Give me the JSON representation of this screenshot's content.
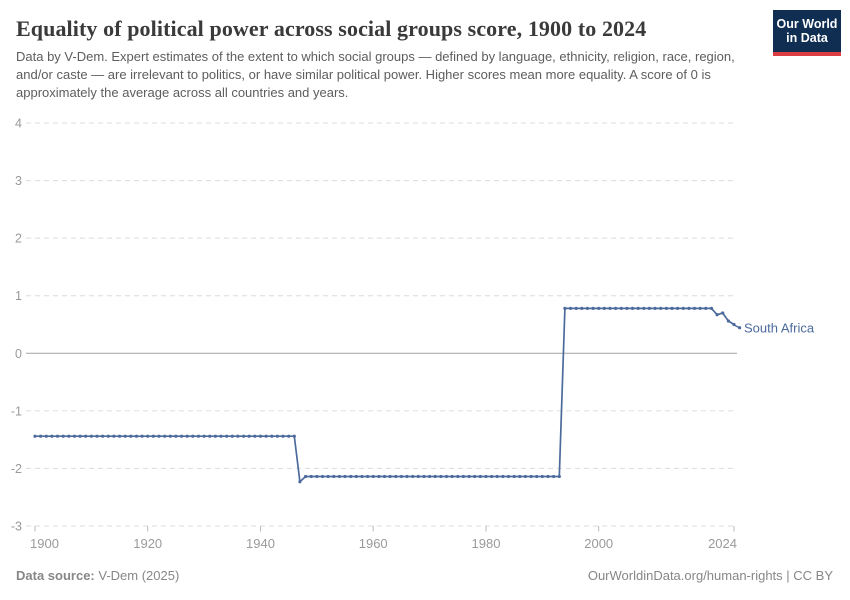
{
  "header": {
    "title": "Equality of political power across social groups score, 1900 to 2024",
    "subtitle": "Data by V-Dem. Expert estimates of the extent to which social groups — defined by language, ethnicity, religion, race, region, and/or caste — are irrelevant to politics, or have similar political power. Higher scores mean more equality. A score of 0 is approximately the average across all countries and years.",
    "logo": {
      "line1": "Our World",
      "line2": "in Data",
      "bg_color": "#0F2E52",
      "bar_color": "#DC3D43"
    }
  },
  "chart_data": {
    "type": "line",
    "title": "Equality of political power across social groups score, 1900 to 2024",
    "xlabel": "",
    "ylabel": "",
    "xlim": [
      1900,
      2024
    ],
    "ylim": [
      -3,
      4
    ],
    "x_ticks": [
      1900,
      1920,
      1940,
      1960,
      1980,
      2000,
      2024
    ],
    "y_ticks": [
      4,
      3,
      2,
      1,
      0,
      -1,
      -2,
      -3
    ],
    "grid": "horizontal-dashed",
    "zero_line_solid": true,
    "legend_position": "line-end-label",
    "colors": {
      "grid": "#dcdcdc",
      "zero_line": "#a3a3a3",
      "axis_text": "#9a9a9a",
      "tick_mark": "#bbbbbb"
    },
    "series": [
      {
        "name": "South Africa",
        "color": "#4C6A9C",
        "marker": "circle",
        "segments": [
          {
            "start_year": 1900,
            "end_year": 1946,
            "value": -1.44
          },
          {
            "start_year": 1947,
            "end_year": 1947,
            "value": -2.23
          },
          {
            "start_year": 1948,
            "end_year": 1993,
            "value": -2.14
          },
          {
            "start_year": 1994,
            "end_year": 2020,
            "value": 0.78
          },
          {
            "start_year": 2021,
            "end_year": 2021,
            "value": 0.67
          },
          {
            "start_year": 2022,
            "end_year": 2022,
            "value": 0.7
          },
          {
            "start_year": 2023,
            "end_year": 2023,
            "value": 0.56
          },
          {
            "start_year": 2024,
            "end_year": 2024,
            "value": 0.5
          }
        ]
      }
    ]
  },
  "footer": {
    "source_label": "Data source:",
    "source_value": "V-Dem (2025)",
    "credit": "OurWorldinData.org/human-rights | CC BY"
  }
}
